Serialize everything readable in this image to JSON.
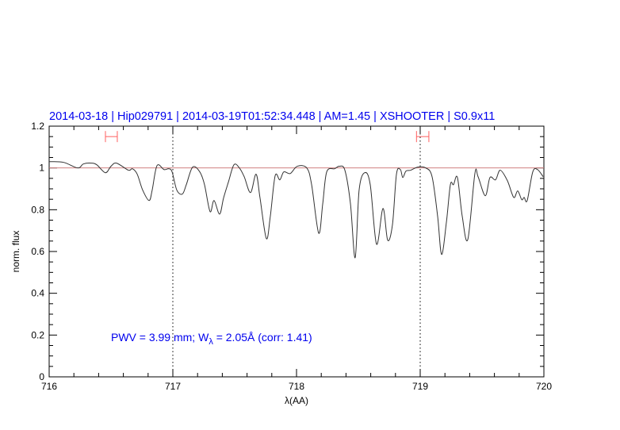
{
  "chart_data": {
    "type": "line",
    "title": "2014-03-18 | Hip029791 | 2014-03-19T01:52:34.448 | AM=1.45 | XSHOOTER | S0.9x11",
    "xlabel": "λ(AA)",
    "ylabel": "norm. flux",
    "xlim": [
      716,
      720
    ],
    "ylim": [
      0,
      1.2
    ],
    "xticks": [
      716,
      717,
      718,
      719,
      720
    ],
    "xtick_labels": [
      "716",
      "717",
      "718",
      "719",
      "720"
    ],
    "yticks": [
      0,
      0.2,
      0.4,
      0.6,
      0.8,
      1,
      1.2
    ],
    "ytick_labels": [
      "0",
      "0.2",
      "0.4",
      "0.6",
      "0.8",
      "1",
      "1.2"
    ],
    "grid": false,
    "reference_line_y": 1.0,
    "dotted_vlines_x": [
      717,
      719
    ],
    "error_bars": [
      {
        "x_center": 716.5,
        "x_min": 716.455,
        "x_max": 716.551,
        "y": 1.15
      },
      {
        "x_center": 719.02,
        "x_min": 718.97,
        "x_max": 719.07,
        "y": 1.15
      }
    ],
    "annotation": {
      "pre": "PWV = 3.99 mm; W",
      "sub": "λ",
      "post": " = 2.05Å (corr: 1.41)",
      "x": 716.5,
      "y": 0.19
    },
    "colors": {
      "line": "#333333",
      "reference": "#d08080",
      "error_bar": "#ff6060",
      "text": "#0000ee"
    },
    "series": [
      {
        "x": [
          716.0,
          716.115,
          716.231,
          716.276,
          716.34,
          716.385,
          716.455,
          716.5,
          716.545,
          716.641,
          716.673,
          716.712,
          716.756,
          716.808,
          716.833,
          716.872,
          716.929,
          716.968,
          716.994,
          717.032,
          717.077,
          717.109,
          717.16,
          717.218,
          717.256,
          717.301,
          717.333,
          717.378,
          717.41,
          717.449,
          717.494,
          717.538,
          717.577,
          717.628,
          717.673,
          717.705,
          717.756,
          717.788,
          717.827,
          717.865,
          717.897,
          717.949,
          718.006,
          718.083,
          718.122,
          718.179,
          718.212,
          718.244,
          718.308,
          718.346,
          718.391,
          718.436,
          718.474,
          718.506,
          718.551,
          718.596,
          718.647,
          718.699,
          718.737,
          718.776,
          718.808,
          718.84,
          718.859,
          718.885,
          718.923,
          718.981,
          719.045,
          719.096,
          719.141,
          719.173,
          719.212,
          719.244,
          719.269,
          719.301,
          719.34,
          719.385,
          719.442,
          719.468,
          719.526,
          719.564,
          719.609,
          719.647,
          719.705,
          719.756,
          719.788,
          719.821,
          719.84,
          719.865,
          719.91,
          719.949,
          719.994
        ],
        "y": [
          1.03,
          1.027,
          1.0,
          1.019,
          1.023,
          1.015,
          0.977,
          1.008,
          1.023,
          0.989,
          0.996,
          0.97,
          0.894,
          0.844,
          0.894,
          1.011,
          0.992,
          0.996,
          0.981,
          0.894,
          0.875,
          0.92,
          1.004,
          0.981,
          0.92,
          0.791,
          0.844,
          0.779,
          0.856,
          0.932,
          1.015,
          1.0,
          0.958,
          0.882,
          0.97,
          0.856,
          0.662,
          0.768,
          0.962,
          0.943,
          0.981,
          0.973,
          1.008,
          1.0,
          0.92,
          0.688,
          0.829,
          0.981,
          0.996,
          1.008,
          0.989,
          0.829,
          0.57,
          0.894,
          0.977,
          0.92,
          0.635,
          0.806,
          0.654,
          0.73,
          0.97,
          0.992,
          0.954,
          0.985,
          0.989,
          1.004,
          1.0,
          0.958,
          0.768,
          0.586,
          0.741,
          0.92,
          0.92,
          0.954,
          0.768,
          0.658,
          0.973,
          0.958,
          0.867,
          0.954,
          0.943,
          0.989,
          0.939,
          0.859,
          0.89,
          0.848,
          0.859,
          0.844,
          0.981,
          0.992,
          0.958
        ]
      }
    ]
  }
}
